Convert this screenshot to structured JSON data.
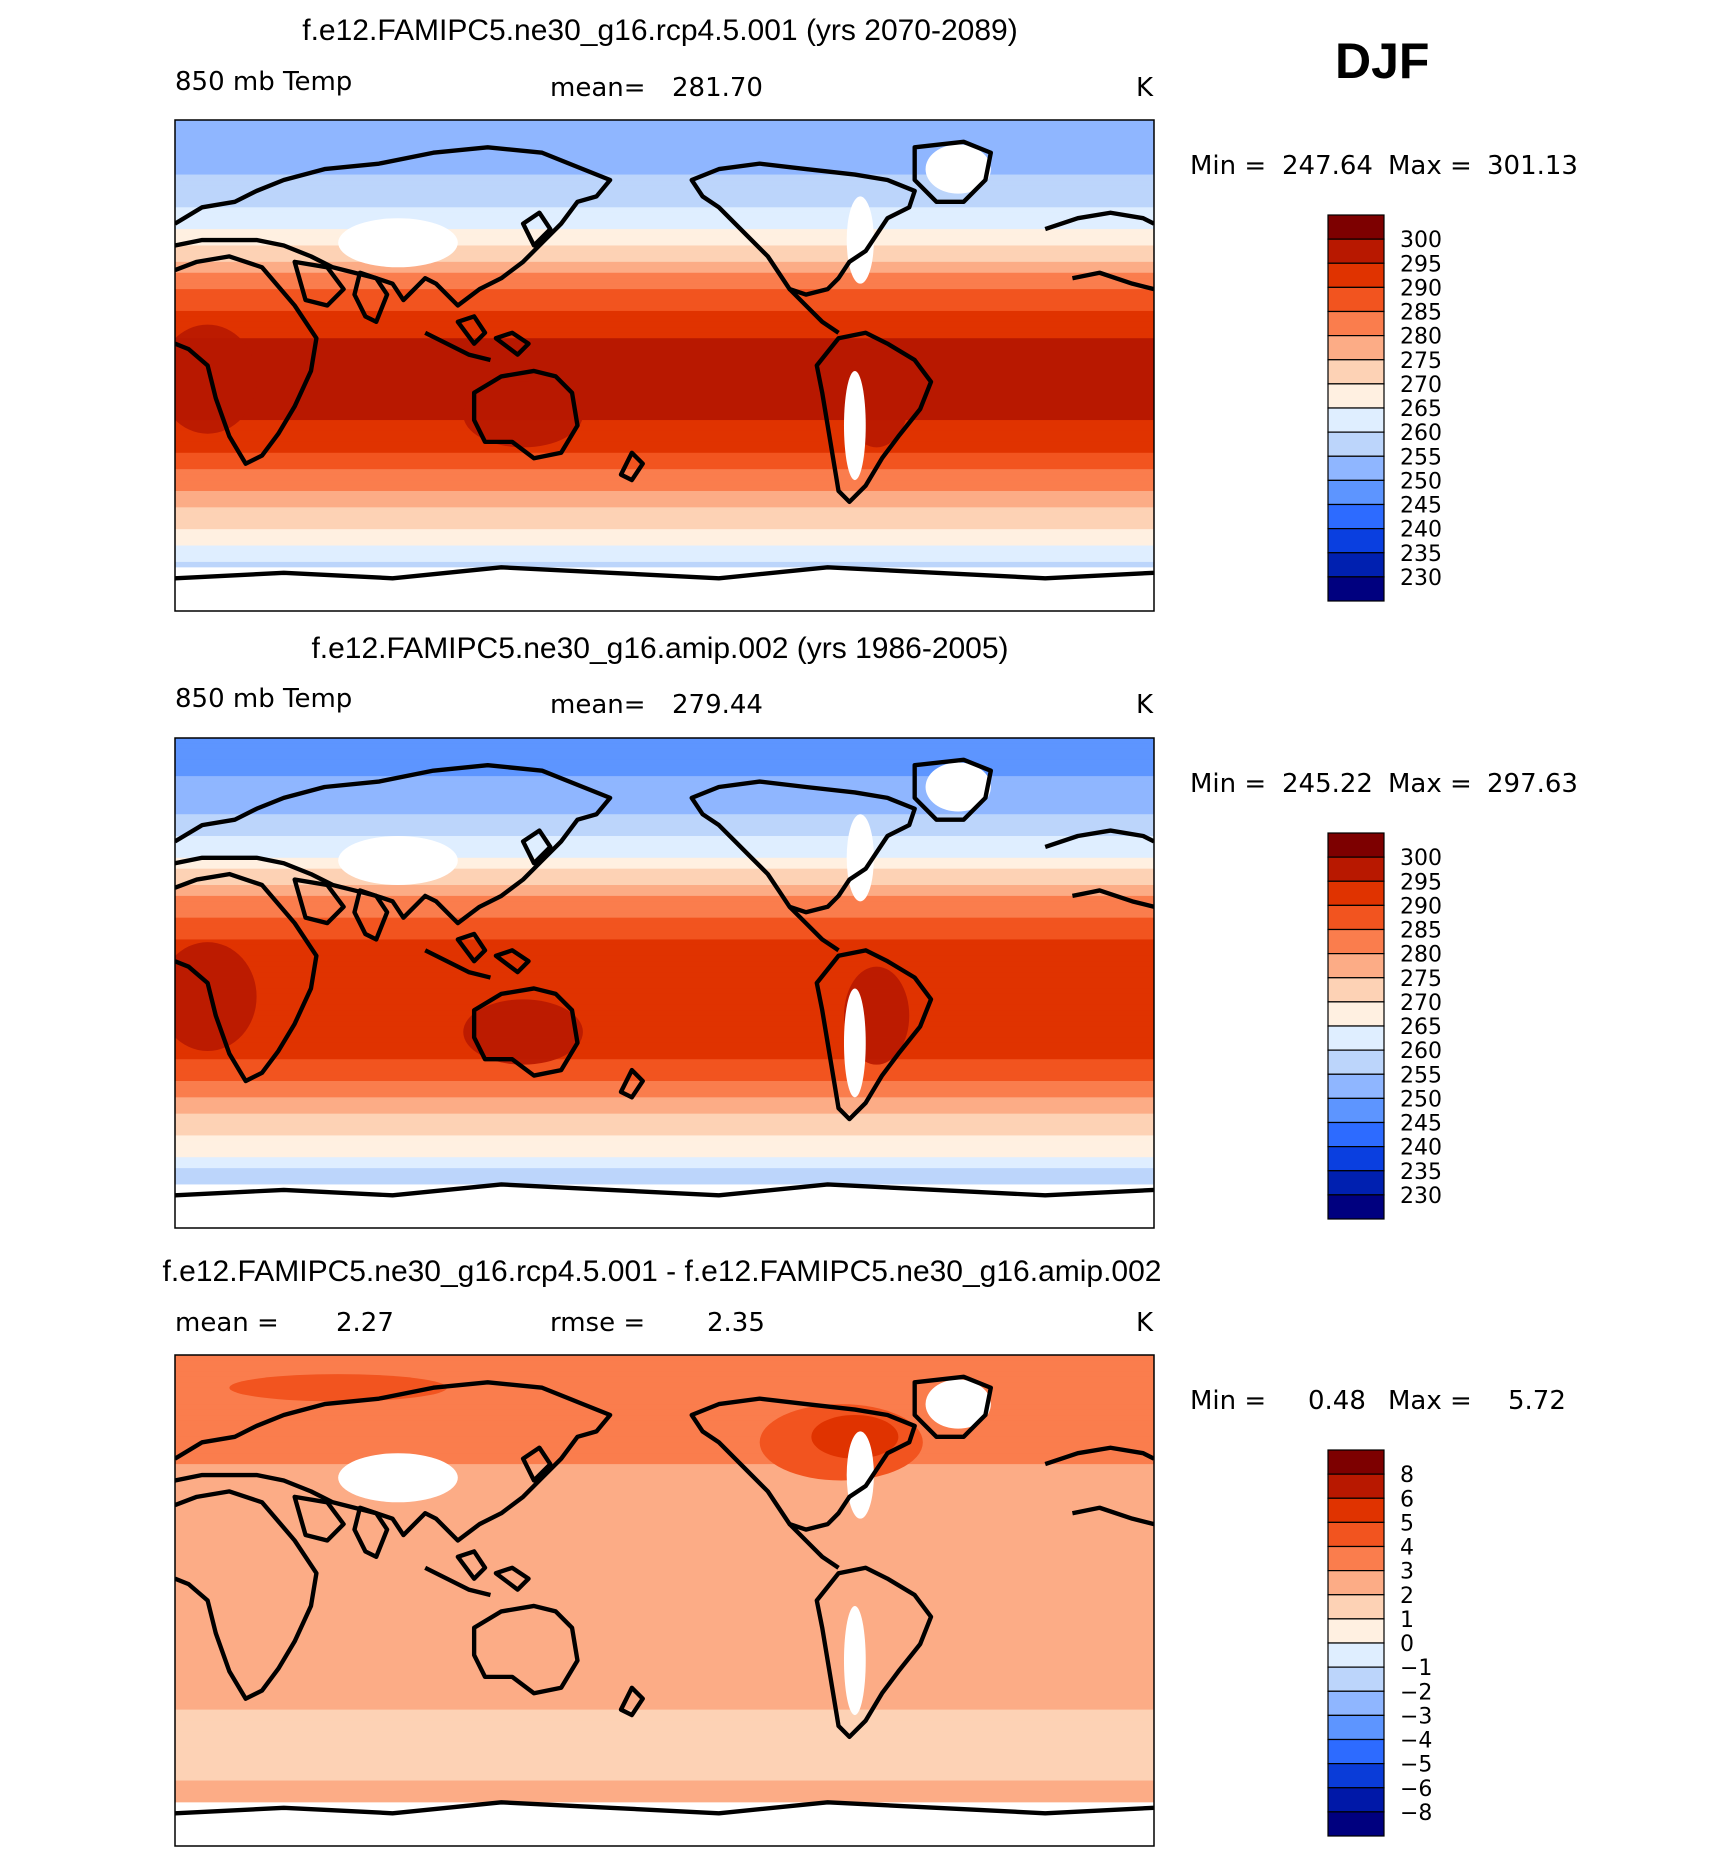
{
  "season": "DJF",
  "colors": {
    "abs_scale": [
      "#00007f",
      "#0020b0",
      "#0a3fe0",
      "#2d6bff",
      "#5d95ff",
      "#8fb6ff",
      "#bcd5fb",
      "#dfeeff",
      "#fff0e1",
      "#fdd2b5",
      "#fcac86",
      "#fa7d4d",
      "#f2541f",
      "#e03300",
      "#b81800",
      "#7d0000"
    ],
    "diff_scale": [
      "#00007f",
      "#0018a8",
      "#0a3cd8",
      "#2d6bff",
      "#5d95ff",
      "#8fb6ff",
      "#bcd5fb",
      "#dfeeff",
      "#fff0e1",
      "#fdd2b5",
      "#fcac86",
      "#fa7d4d",
      "#f2541f",
      "#e03300",
      "#b81800",
      "#7d0000"
    ]
  },
  "chart_data": [
    {
      "type": "heatmap",
      "title": "f.e12.FAMIPC5.ne30_g16.rcp4.5.001 (yrs 2070-2089)",
      "variable": "850 mb Temp",
      "stat_label": "mean=",
      "stat_value": "281.70",
      "units": "K",
      "min_label": "Min =",
      "min_value": "247.64",
      "max_label": "Max =",
      "max_value": "301.13",
      "colorbar_ticks": [
        "300",
        "295",
        "290",
        "285",
        "280",
        "275",
        "270",
        "265",
        "260",
        "255",
        "250",
        "245",
        "240",
        "235",
        "230"
      ],
      "zonal_profile_K": [
        [
          -90,
          247.6
        ],
        [
          -80,
          254
        ],
        [
          -70,
          262
        ],
        [
          -60,
          270
        ],
        [
          -50,
          276
        ],
        [
          -40,
          284
        ],
        [
          -30,
          291
        ],
        [
          -20,
          295
        ],
        [
          -10,
          296.5
        ],
        [
          0,
          297
        ],
        [
          10,
          295
        ],
        [
          20,
          290
        ],
        [
          30,
          283
        ],
        [
          40,
          274
        ],
        [
          50,
          265
        ],
        [
          60,
          259
        ],
        [
          70,
          255
        ],
        [
          80,
          252
        ],
        [
          90,
          250
        ]
      ]
    },
    {
      "type": "heatmap",
      "title": "f.e12.FAMIPC5.ne30_g16.amip.002 (yrs 1986-2005)",
      "variable": "850 mb Temp",
      "stat_label": "mean=",
      "stat_value": "279.44",
      "units": "K",
      "min_label": "Min =",
      "min_value": "245.22",
      "max_label": "Max =",
      "max_value": "297.63",
      "colorbar_ticks": [
        "300",
        "295",
        "290",
        "285",
        "280",
        "275",
        "270",
        "265",
        "260",
        "255",
        "250",
        "245",
        "240",
        "235",
        "230"
      ],
      "zonal_profile_K": [
        [
          -90,
          245.2
        ],
        [
          -80,
          251
        ],
        [
          -70,
          259
        ],
        [
          -60,
          268
        ],
        [
          -50,
          274
        ],
        [
          -40,
          282
        ],
        [
          -30,
          289
        ],
        [
          -20,
          293
        ],
        [
          -10,
          294.5
        ],
        [
          0,
          295
        ],
        [
          10,
          293
        ],
        [
          20,
          288
        ],
        [
          30,
          281
        ],
        [
          40,
          271
        ],
        [
          50,
          262
        ],
        [
          60,
          256
        ],
        [
          70,
          252
        ],
        [
          80,
          249
        ],
        [
          90,
          248
        ]
      ]
    },
    {
      "type": "heatmap",
      "title": "f.e12.FAMIPC5.ne30_g16.rcp4.5.001 - f.e12.FAMIPC5.ne30_g16.amip.002",
      "variable": "mean =",
      "variable_value": "2.27",
      "stat_label": "rmse =",
      "stat_value": "2.35",
      "units": "K",
      "min_label": "Min =",
      "min_value": "0.48",
      "max_label": "Max =",
      "max_value": "5.72",
      "colorbar_ticks": [
        "8",
        "6",
        "5",
        "4",
        "3",
        "2",
        "1",
        "0",
        "−1",
        "−2",
        "−3",
        "−4",
        "−5",
        "−6",
        "−8"
      ],
      "zonal_profile_K": [
        [
          -90,
          2.2
        ],
        [
          -70,
          2.2
        ],
        [
          -60,
          1.6
        ],
        [
          -40,
          2.0
        ],
        [
          -20,
          2.2
        ],
        [
          0,
          2.3
        ],
        [
          20,
          2.3
        ],
        [
          40,
          2.5
        ],
        [
          60,
          3.5
        ],
        [
          75,
          4.0
        ],
        [
          90,
          3.2
        ]
      ]
    }
  ]
}
